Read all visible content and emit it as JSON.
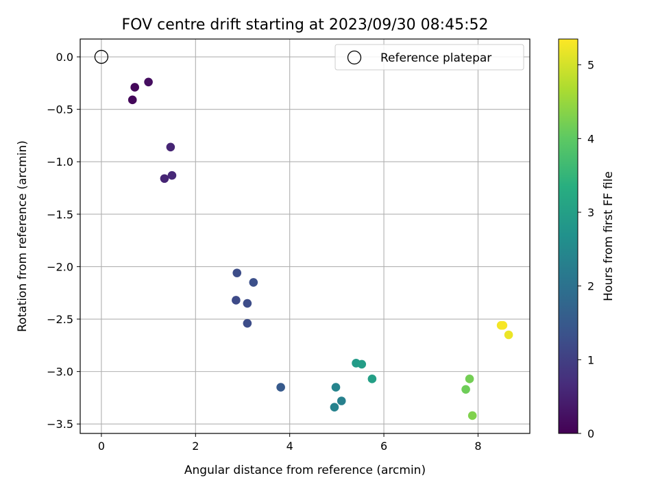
{
  "chart_data": {
    "type": "scatter",
    "title": "FOV centre drift starting at 2023/09/30 08:45:52",
    "xlabel": "Angular distance from reference (arcmin)",
    "ylabel": "Rotation from reference (arcmin)",
    "xlim": [
      -0.45,
      9.1
    ],
    "ylim": [
      -3.59,
      0.17
    ],
    "xticks": [
      0,
      2,
      4,
      6,
      8
    ],
    "xtick_labels": [
      "0",
      "2",
      "4",
      "6",
      "8"
    ],
    "yticks": [
      0.0,
      -0.5,
      -1.0,
      -1.5,
      -2.0,
      -2.5,
      -3.0,
      -3.5
    ],
    "ytick_labels": [
      "0.0",
      "−0.5",
      "−1.0",
      "−1.5",
      "−2.0",
      "−2.5",
      "−3.0",
      "−3.5"
    ],
    "grid": true,
    "legend": {
      "position": "top-right",
      "entries": [
        "Reference platepar"
      ]
    },
    "reference_point": {
      "x": 0,
      "y": 0,
      "label": "Reference platepar"
    },
    "colorbar": {
      "label": "Hours from first FF file",
      "colormap": "viridis",
      "range": [
        0,
        5.35
      ],
      "ticks": [
        0,
        1,
        2,
        3,
        4,
        5
      ],
      "tick_labels": [
        "0",
        "1",
        "2",
        "3",
        "4",
        "5"
      ]
    },
    "points": [
      {
        "x": 1.0,
        "y": -0.24,
        "c": 0.2
      },
      {
        "x": 0.71,
        "y": -0.29,
        "c": 0.1
      },
      {
        "x": 0.66,
        "y": -0.41,
        "c": 0.1
      },
      {
        "x": 1.47,
        "y": -0.86,
        "c": 0.55
      },
      {
        "x": 1.5,
        "y": -1.13,
        "c": 0.6
      },
      {
        "x": 1.34,
        "y": -1.16,
        "c": 0.55
      },
      {
        "x": 2.88,
        "y": -2.06,
        "c": 1.25
      },
      {
        "x": 3.23,
        "y": -2.15,
        "c": 1.3
      },
      {
        "x": 2.86,
        "y": -2.32,
        "c": 1.2
      },
      {
        "x": 3.1,
        "y": -2.35,
        "c": 1.25
      },
      {
        "x": 3.1,
        "y": -2.54,
        "c": 1.25
      },
      {
        "x": 3.81,
        "y": -3.15,
        "c": 1.5
      },
      {
        "x": 4.98,
        "y": -3.15,
        "c": 2.4
      },
      {
        "x": 5.1,
        "y": -3.28,
        "c": 2.3
      },
      {
        "x": 4.95,
        "y": -3.34,
        "c": 2.35
      },
      {
        "x": 5.41,
        "y": -2.92,
        "c": 2.9
      },
      {
        "x": 5.53,
        "y": -2.93,
        "c": 2.95
      },
      {
        "x": 5.75,
        "y": -3.07,
        "c": 3.0
      },
      {
        "x": 7.82,
        "y": -3.07,
        "c": 4.2
      },
      {
        "x": 7.74,
        "y": -3.17,
        "c": 4.15
      },
      {
        "x": 7.88,
        "y": -3.42,
        "c": 4.3
      },
      {
        "x": 8.49,
        "y": -2.56,
        "c": 5.25
      },
      {
        "x": 8.53,
        "y": -2.56,
        "c": 5.3
      },
      {
        "x": 8.65,
        "y": -2.65,
        "c": 5.2
      }
    ]
  }
}
